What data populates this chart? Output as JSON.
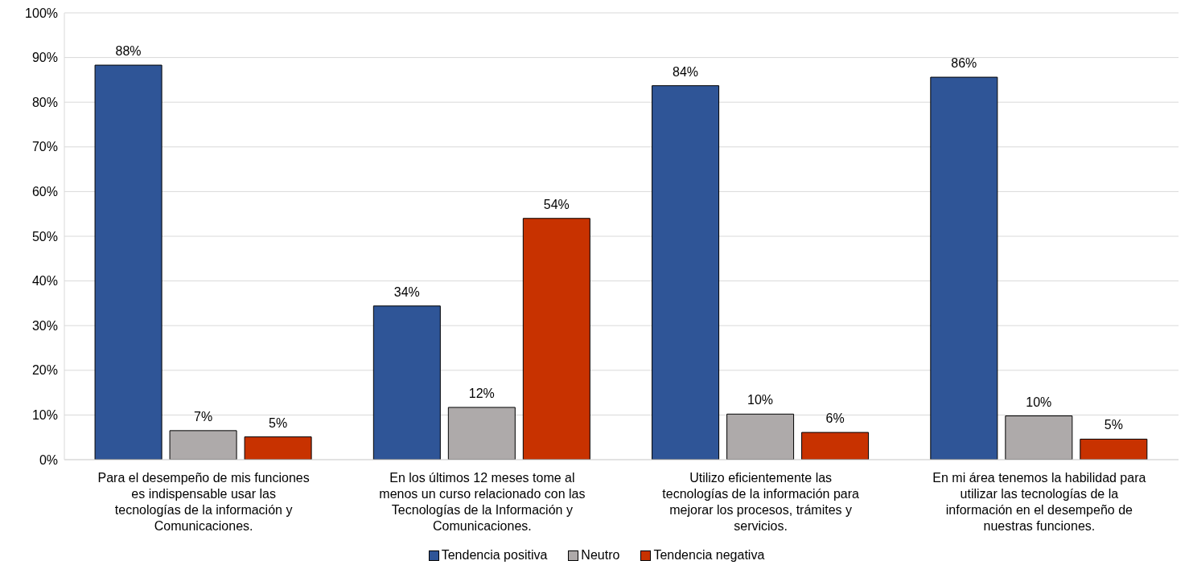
{
  "chart_data": {
    "type": "bar",
    "categories": [
      "Para el desempeño de mis funciones es indispensable usar las tecnologías de la información y Comunicaciones.",
      "En los últimos 12 meses tome al menos un curso relacionado con las Tecnologías de la Información y Comunicaciones.",
      "Utilizo eficientemente las tecnologías de la información para mejorar los procesos, trámites y servicios.",
      "En mi área tenemos la habilidad para utilizar las tecnologías de la información en el desempeño de nuestras funciones."
    ],
    "series": [
      {
        "name": "Tendencia positiva",
        "color": "#2f5597",
        "values": [
          88.3,
          34.4,
          83.7,
          85.6
        ],
        "value_labels": [
          "88%",
          "34%",
          "84%",
          "86%"
        ]
      },
      {
        "name": "Neutro",
        "color": "#aeaaaa",
        "values": [
          6.5,
          11.7,
          10.2,
          9.8
        ],
        "value_labels": [
          "7%",
          "12%",
          "10%",
          "10%"
        ]
      },
      {
        "name": "Tendencia negativa",
        "color": "#c83200",
        "values": [
          5.1,
          54,
          6.1,
          4.6
        ],
        "value_labels": [
          "5%",
          "54%",
          "6%",
          "5%"
        ]
      }
    ],
    "ylim": [
      0,
      100
    ],
    "yticks": [
      {
        "value": 0,
        "label": "0%"
      },
      {
        "value": 10,
        "label": "10%"
      },
      {
        "value": 20,
        "label": "20%"
      },
      {
        "value": 30,
        "label": "30%"
      },
      {
        "value": 40,
        "label": "40%"
      },
      {
        "value": 50,
        "label": "50%"
      },
      {
        "value": 60,
        "label": "60%"
      },
      {
        "value": 70,
        "label": "70%"
      },
      {
        "value": 80,
        "label": "80%"
      },
      {
        "value": 90,
        "label": "90%"
      },
      {
        "value": 100,
        "label": "100%"
      }
    ],
    "grid": "y",
    "legend": "bottom"
  }
}
